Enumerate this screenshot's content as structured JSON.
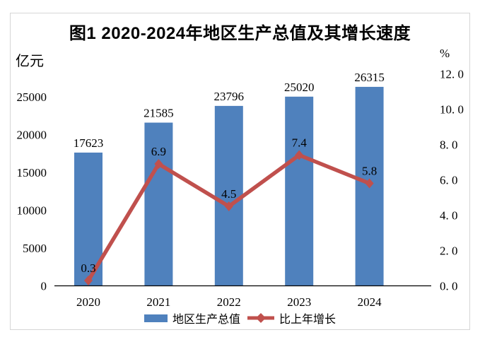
{
  "chart": {
    "title": "图1 2020-2024年地区生产总值及其增长速度",
    "left_axis_unit": "亿元",
    "right_axis_unit": "%"
  },
  "legend": {
    "items": [
      {
        "label": "地区生产总值",
        "swatch": "bar",
        "color": "#4F81BD"
      },
      {
        "label": "比上年增长",
        "swatch": "line-diamond",
        "color": "#C0504D"
      }
    ]
  },
  "chart_data": {
    "type": "combo-bar-line",
    "title": "图1 2020-2024年地区生产总值及其增长速度",
    "categories": [
      "2020",
      "2021",
      "2022",
      "2023",
      "2024"
    ],
    "series": [
      {
        "name": "地区生产总值",
        "chart": "bar",
        "axis": "left",
        "unit": "亿元",
        "color": "#4F81BD",
        "values": [
          17623,
          21585,
          23796,
          25020,
          26315
        ],
        "data_labels": [
          "17623",
          "21585",
          "23796",
          "25020",
          "26315"
        ]
      },
      {
        "name": "比上年增长",
        "chart": "line",
        "axis": "right",
        "unit": "%",
        "color": "#C0504D",
        "marker": "diamond",
        "values": [
          0.3,
          6.9,
          4.5,
          7.4,
          5.8
        ],
        "data_labels": [
          "0.3",
          "6.9",
          "4.5",
          "7.4",
          "5.8"
        ]
      }
    ],
    "left_axis": {
      "unit": "亿元",
      "ticks": [
        {
          "value": 0,
          "label": "0"
        },
        {
          "value": 5000,
          "label": "5000"
        },
        {
          "value": 10000,
          "label": "10000"
        },
        {
          "value": 15000,
          "label": "15000"
        },
        {
          "value": 20000,
          "label": "20000"
        },
        {
          "value": 25000,
          "label": "25000"
        }
      ]
    },
    "right_axis": {
      "unit": "%",
      "ticks": [
        {
          "value": 0,
          "label": "0. 0"
        },
        {
          "value": 2,
          "label": "2. 0"
        },
        {
          "value": 4,
          "label": "4. 0"
        },
        {
          "value": 6,
          "label": "6. 0"
        },
        {
          "value": 8,
          "label": "8. 0"
        },
        {
          "value": 10,
          "label": "10. 0"
        },
        {
          "value": 12,
          "label": "12. 0"
        }
      ]
    },
    "x_axis": {
      "labels": [
        "2020",
        "2021",
        "2022",
        "2023",
        "2024"
      ]
    },
    "ylim_left": [
      0,
      25000
    ],
    "ylim_right": [
      0,
      12
    ],
    "grid": false,
    "legend_position": "bottom"
  }
}
